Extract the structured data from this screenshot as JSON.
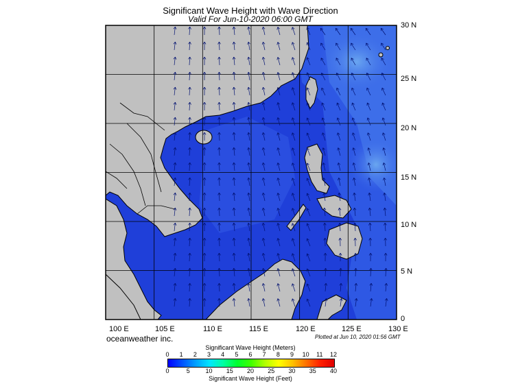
{
  "map": {
    "title": "Significant Wave Height with Wave Direction",
    "subtitle": "Valid For Jun-10-2020 06:00 GMT",
    "latitude_labels": [
      "30 N",
      "25 N",
      "20 N",
      "15 N",
      "10 N",
      "5 N",
      "0"
    ],
    "longitude_labels": [
      "100 E",
      "105 E",
      "110 E",
      "115 E",
      "120 E",
      "125 E",
      "130 E"
    ],
    "extent": {
      "lon_min": 100,
      "lon_max": 130,
      "lat_min": 0,
      "lat_max": 30
    },
    "credit": "oceanweather inc.",
    "plotted": "Plotted at Jun 10, 2020 01:56 GMT",
    "colors": {
      "land": "#c0c0c0",
      "sea_low": "#1f3fd9",
      "sea_mid": "#3b68e8",
      "sea_high": "#5d95ee",
      "arrow": "#001070"
    }
  },
  "colorbar": {
    "title_top": "Significant Wave Height (Meters)",
    "title_bottom": "Significant Wave Height (Feet)",
    "meter_ticks": [
      "0",
      "1",
      "2",
      "3",
      "4",
      "5",
      "6",
      "7",
      "8",
      "9",
      "10",
      "11",
      "12"
    ],
    "feet_ticks": [
      "0",
      "5",
      "10",
      "15",
      "20",
      "25",
      "30",
      "35",
      "40"
    ],
    "range_meters": [
      0,
      12
    ],
    "range_feet": [
      0,
      40
    ],
    "colors": [
      "#0000ff",
      "#0050ff",
      "#00a0ff",
      "#00e5ff",
      "#00ffa0",
      "#00ff30",
      "#40ff00",
      "#b0ff00",
      "#ffff00",
      "#ffc000",
      "#ff7000",
      "#ff2000",
      "#e00000"
    ]
  }
}
